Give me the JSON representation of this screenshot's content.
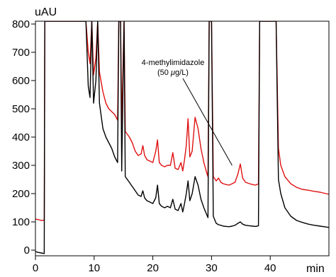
{
  "chart_data": {
    "type": "line",
    "title": "",
    "xlabel": "min",
    "ylabel": "uAU",
    "xlim": [
      0,
      50
    ],
    "ylim": [
      -20,
      810
    ],
    "x_ticks": [
      0,
      10,
      20,
      30,
      40
    ],
    "y_ticks": [
      0,
      100,
      200,
      300,
      400,
      500,
      600,
      700,
      800
    ],
    "x_tick_labels": [
      "0",
      "10",
      "20",
      "30",
      "40"
    ],
    "y_tick_labels": [
      "0",
      "100",
      "200",
      "300",
      "400",
      "500",
      "600",
      "700",
      "800"
    ],
    "grid": false,
    "legend": "none",
    "annotation": {
      "line1": "4-methylimidazole",
      "line2_prefix": "(50 ",
      "line2_mu": "μ",
      "line2_suffix": "g/L)",
      "arrow_target": [
        33.5,
        300
      ]
    },
    "series": [
      {
        "color": "#e01010",
        "points": [
          [
            0,
            110
          ],
          [
            0.5,
            108
          ],
          [
            1.0,
            105
          ],
          [
            1.5,
            106
          ],
          [
            1.6,
            810
          ],
          [
            1.8,
            810
          ],
          [
            8.6,
            810
          ],
          [
            9.0,
            700
          ],
          [
            9.3,
            660
          ],
          [
            9.6,
            810
          ],
          [
            9.9,
            620
          ],
          [
            10.3,
            680
          ],
          [
            10.6,
            810
          ],
          [
            10.9,
            630
          ],
          [
            11.5,
            560
          ],
          [
            12.0,
            520
          ],
          [
            12.5,
            500
          ],
          [
            13.0,
            490
          ],
          [
            13.5,
            480
          ],
          [
            14.0,
            460
          ],
          [
            14.2,
            810
          ],
          [
            14.5,
            810
          ],
          [
            14.7,
            440
          ],
          [
            15.1,
            810
          ],
          [
            15.3,
            420
          ],
          [
            16.0,
            400
          ],
          [
            16.5,
            380
          ],
          [
            17.0,
            350
          ],
          [
            17.5,
            335
          ],
          [
            18.0,
            340
          ],
          [
            18.3,
            370
          ],
          [
            18.6,
            335
          ],
          [
            19.0,
            320
          ],
          [
            19.5,
            315
          ],
          [
            20.0,
            310
          ],
          [
            20.5,
            350
          ],
          [
            20.8,
            390
          ],
          [
            21.1,
            310
          ],
          [
            21.5,
            300
          ],
          [
            22.0,
            295
          ],
          [
            22.5,
            300
          ],
          [
            23.0,
            300
          ],
          [
            23.4,
            345
          ],
          [
            23.8,
            290
          ],
          [
            24.3,
            285
          ],
          [
            24.8,
            310
          ],
          [
            25.1,
            280
          ],
          [
            25.4,
            320
          ],
          [
            25.7,
            370
          ],
          [
            26.0,
            465
          ],
          [
            26.3,
            330
          ],
          [
            26.7,
            350
          ],
          [
            27.2,
            470
          ],
          [
            27.7,
            430
          ],
          [
            28.2,
            360
          ],
          [
            28.7,
            310
          ],
          [
            29.1,
            280
          ],
          [
            29.4,
            260
          ],
          [
            29.6,
            810
          ],
          [
            30.0,
            810
          ],
          [
            30.3,
            260
          ],
          [
            30.8,
            245
          ],
          [
            31.2,
            255
          ],
          [
            31.6,
            240
          ],
          [
            32.0,
            235
          ],
          [
            32.5,
            232
          ],
          [
            33.0,
            230
          ],
          [
            33.5,
            235
          ],
          [
            34.0,
            240
          ],
          [
            34.5,
            270
          ],
          [
            34.9,
            305
          ],
          [
            35.3,
            255
          ],
          [
            35.8,
            240
          ],
          [
            36.5,
            235
          ],
          [
            37.0,
            232
          ],
          [
            37.5,
            230
          ],
          [
            38.0,
            235
          ],
          [
            38.2,
            810
          ],
          [
            38.6,
            810
          ],
          [
            40.6,
            810
          ],
          [
            41.0,
            810
          ],
          [
            41.4,
            360
          ],
          [
            41.8,
            300
          ],
          [
            42.5,
            260
          ],
          [
            43.5,
            235
          ],
          [
            44.5,
            222
          ],
          [
            45.5,
            215
          ],
          [
            46.5,
            212
          ],
          [
            47.5,
            208
          ],
          [
            48.5,
            205
          ],
          [
            49.5,
            200
          ],
          [
            50.0,
            198
          ]
        ]
      },
      {
        "color": "#000000",
        "points": [
          [
            0,
            -5
          ],
          [
            0.5,
            -8
          ],
          [
            1.0,
            -10
          ],
          [
            1.5,
            -12
          ],
          [
            1.6,
            810
          ],
          [
            1.8,
            810
          ],
          [
            8.6,
            810
          ],
          [
            9.0,
            580
          ],
          [
            9.3,
            540
          ],
          [
            9.6,
            810
          ],
          [
            9.9,
            520
          ],
          [
            10.3,
            600
          ],
          [
            10.6,
            810
          ],
          [
            10.9,
            520
          ],
          [
            11.5,
            430
          ],
          [
            12.0,
            400
          ],
          [
            12.5,
            380
          ],
          [
            13.0,
            360
          ],
          [
            13.5,
            330
          ],
          [
            14.0,
            310
          ],
          [
            14.2,
            810
          ],
          [
            14.5,
            810
          ],
          [
            14.7,
            280
          ],
          [
            15.1,
            810
          ],
          [
            15.3,
            260
          ],
          [
            16.0,
            240
          ],
          [
            16.5,
            225
          ],
          [
            17.0,
            210
          ],
          [
            17.5,
            195
          ],
          [
            18.0,
            190
          ],
          [
            18.3,
            210
          ],
          [
            18.6,
            185
          ],
          [
            19.0,
            175
          ],
          [
            19.5,
            170
          ],
          [
            20.0,
            165
          ],
          [
            20.5,
            185
          ],
          [
            20.8,
            230
          ],
          [
            21.1,
            165
          ],
          [
            21.5,
            155
          ],
          [
            22.0,
            150
          ],
          [
            22.5,
            155
          ],
          [
            23.0,
            150
          ],
          [
            23.4,
            180
          ],
          [
            23.8,
            145
          ],
          [
            24.3,
            140
          ],
          [
            24.8,
            165
          ],
          [
            25.1,
            135
          ],
          [
            25.4,
            165
          ],
          [
            25.7,
            200
          ],
          [
            26.0,
            245
          ],
          [
            26.3,
            175
          ],
          [
            26.7,
            200
          ],
          [
            27.2,
            260
          ],
          [
            27.7,
            230
          ],
          [
            28.2,
            180
          ],
          [
            28.7,
            150
          ],
          [
            29.1,
            130
          ],
          [
            29.4,
            115
          ],
          [
            29.6,
            810
          ],
          [
            30.0,
            810
          ],
          [
            30.3,
            120
          ],
          [
            30.8,
            95
          ],
          [
            31.2,
            90
          ],
          [
            31.6,
            88
          ],
          [
            32.0,
            85
          ],
          [
            32.5,
            84
          ],
          [
            33.0,
            83
          ],
          [
            33.5,
            85
          ],
          [
            34.0,
            88
          ],
          [
            34.5,
            95
          ],
          [
            34.9,
            100
          ],
          [
            35.3,
            92
          ],
          [
            35.8,
            88
          ],
          [
            36.5,
            86
          ],
          [
            37.0,
            85
          ],
          [
            37.5,
            84
          ],
          [
            38.0,
            86
          ],
          [
            38.2,
            810
          ],
          [
            38.6,
            810
          ],
          [
            40.6,
            810
          ],
          [
            41.0,
            810
          ],
          [
            41.4,
            250
          ],
          [
            41.8,
            200
          ],
          [
            42.5,
            150
          ],
          [
            43.5,
            120
          ],
          [
            44.5,
            105
          ],
          [
            45.5,
            98
          ],
          [
            46.5,
            92
          ],
          [
            47.5,
            88
          ],
          [
            48.5,
            85
          ],
          [
            49.5,
            82
          ],
          [
            50.0,
            80
          ]
        ]
      }
    ]
  }
}
